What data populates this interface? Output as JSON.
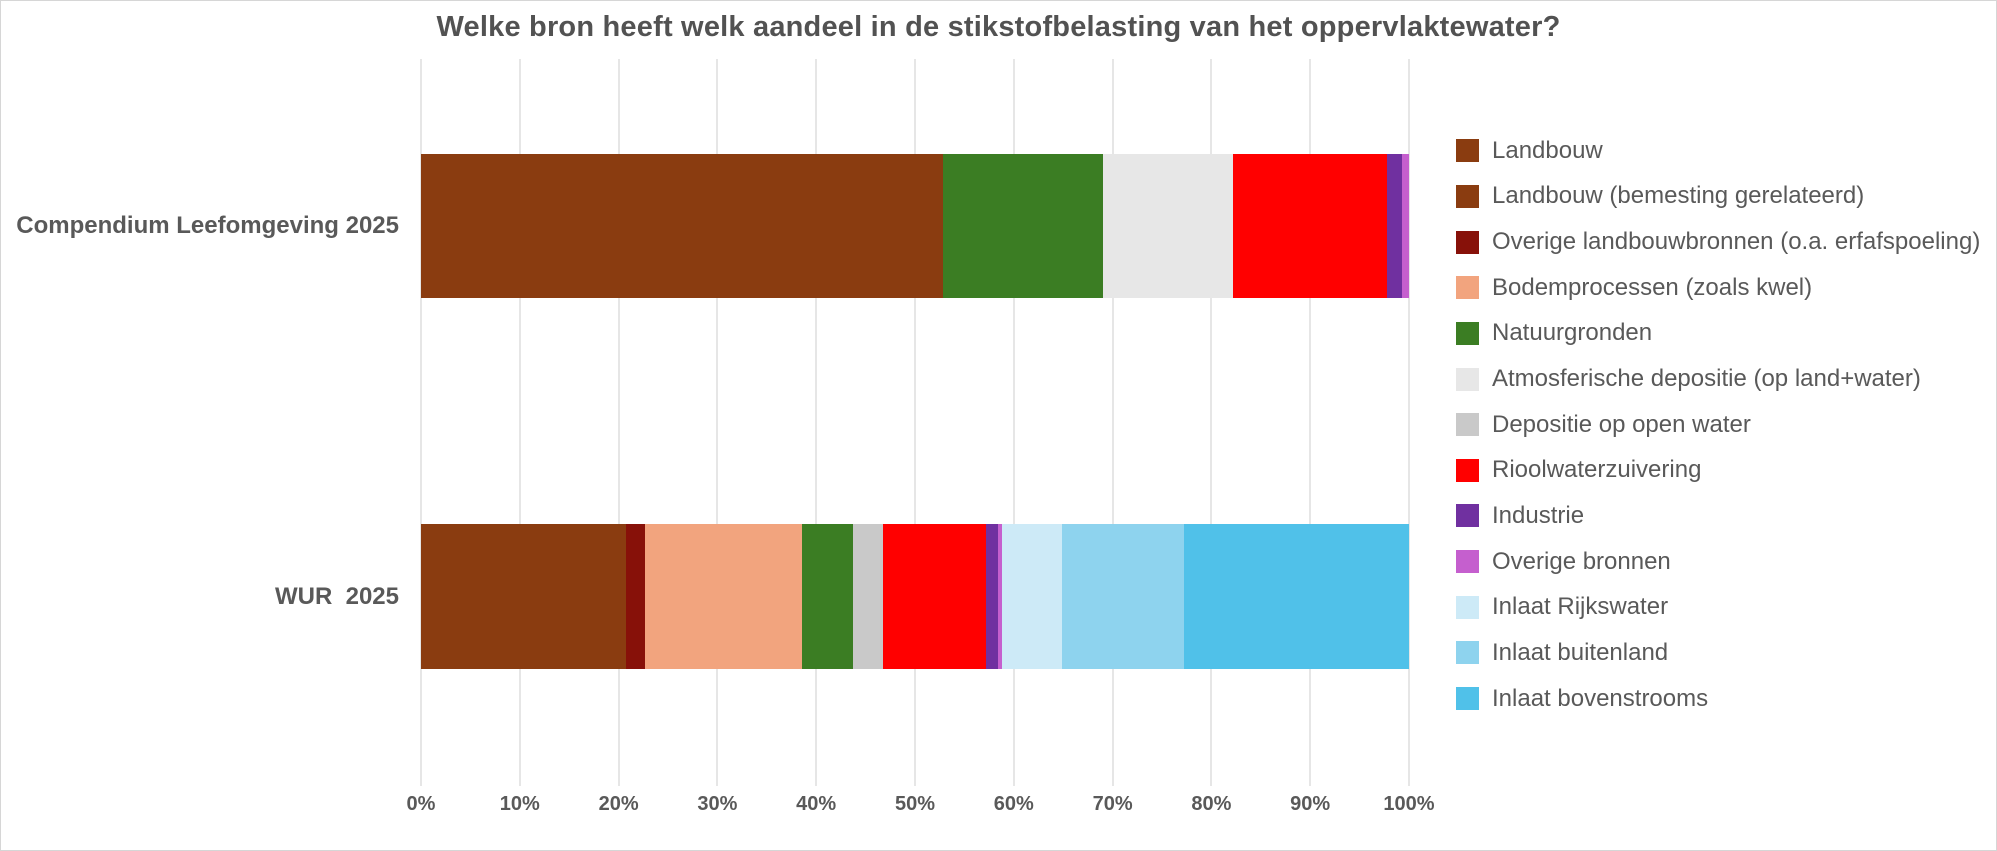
{
  "chart_data": {
    "type": "bar",
    "orientation": "horizontal",
    "stacked": true,
    "unit": "%",
    "title": "Welke bron heeft welk aandeel in de stikstofbelasting van het oppervlaktewater?",
    "categories": [
      "Compendium Leefomgeving 2025",
      "WUR  2025"
    ],
    "x_ticks": [
      "0%",
      "10%",
      "20%",
      "30%",
      "40%",
      "50%",
      "60%",
      "70%",
      "80%",
      "90%",
      "100%"
    ],
    "xlim": [
      0,
      100
    ],
    "grid": "vertical",
    "legend_position": "right",
    "series": [
      {
        "name": "Landbouw",
        "color": "#8a3c10",
        "values": [
          52.8,
          0
        ]
      },
      {
        "name": "Landbouw (bemesting gerelateerd)",
        "color": "#8a3c10",
        "values": [
          0,
          20.7
        ]
      },
      {
        "name": "Overige landbouwbronnen (o.a. erfafspoeling)",
        "color": "#871109",
        "values": [
          0,
          2.0
        ]
      },
      {
        "name": "Bodemprocessen (zoals kwel)",
        "color": "#f2a47e",
        "values": [
          0,
          15.9
        ]
      },
      {
        "name": "Natuurgronden",
        "color": "#3b7d23",
        "values": [
          16.2,
          5.1
        ]
      },
      {
        "name": "Atmosferische depositie (op land+water)",
        "color": "#e7e7e7",
        "values": [
          13.2,
          0
        ]
      },
      {
        "name": "Depositie op open water",
        "color": "#c9c9c9",
        "values": [
          0,
          3.1
        ]
      },
      {
        "name": "Rioolwaterzuivering",
        "color": "#ff0000",
        "values": [
          15.6,
          10.4
        ]
      },
      {
        "name": "Industrie",
        "color": "#7030a0",
        "values": [
          1.5,
          1.2
        ]
      },
      {
        "name": "Overige bronnen",
        "color": "#c55fce",
        "values": [
          0.7,
          0.4
        ]
      },
      {
        "name": "Inlaat Rijkswater",
        "color": "#cdeaf7",
        "values": [
          0,
          6.1
        ]
      },
      {
        "name": "Inlaat buitenland",
        "color": "#8ed3ee",
        "values": [
          0,
          12.3
        ]
      },
      {
        "name": "Inlaat bovenstrooms",
        "color": "#50c1e9",
        "values": [
          0,
          22.8
        ]
      }
    ]
  },
  "colors": {
    "text": "#595959",
    "title": "#525252",
    "gridline": "#e6e6e6",
    "background": "#ffffff",
    "border": "#d6d6d6"
  }
}
